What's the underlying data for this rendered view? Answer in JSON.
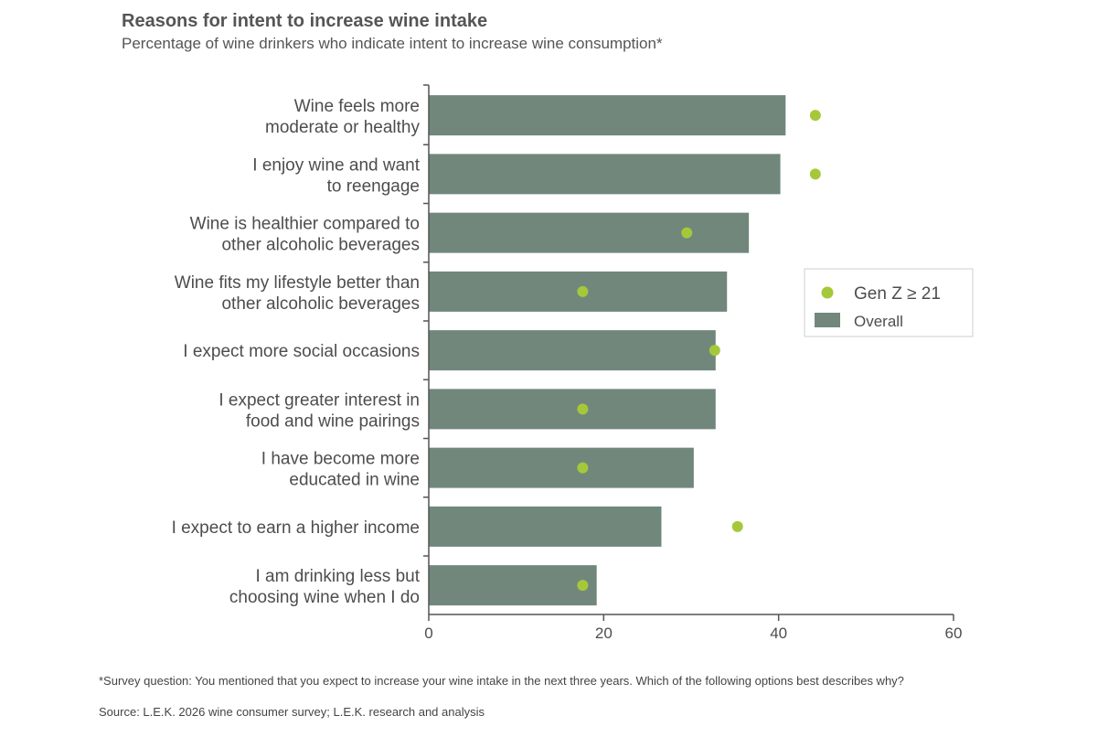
{
  "colors": {
    "bar": "#71877c",
    "dot": "#a5c83a",
    "axis": "#555555",
    "text": "#4d4d4d"
  },
  "chart_data": {
    "type": "bar",
    "orientation": "horizontal",
    "title": "Reasons for intent to increase wine intake",
    "subtitle": "Percentage of wine drinkers who indicate intent to increase wine consumption*",
    "categories": [
      [
        "Wine feels more",
        "moderate or healthy"
      ],
      [
        "I enjoy wine and want",
        "to reengage"
      ],
      [
        "Wine is healthier compared to",
        "other alcoholic beverages"
      ],
      [
        "Wine fits my lifestyle better than",
        "other alcoholic beverages"
      ],
      [
        "I expect more social occasions"
      ],
      [
        "I expect greater interest in",
        "food and wine pairings"
      ],
      [
        "I have become more",
        "educated in wine"
      ],
      [
        "I expect to earn a higher income"
      ],
      [
        "I am drinking less but",
        "choosing wine when I do"
      ]
    ],
    "series": [
      {
        "name": "Overall",
        "type": "bar",
        "values": [
          40.8,
          40.2,
          36.6,
          34.1,
          32.8,
          32.8,
          30.3,
          26.6,
          19.2
        ]
      },
      {
        "name": "Gen Z ≥ 21",
        "type": "dot",
        "values": [
          44.2,
          44.2,
          29.5,
          17.6,
          32.7,
          17.6,
          17.6,
          35.3,
          17.6
        ]
      }
    ],
    "xlim": [
      0,
      60
    ],
    "xticks": [
      0,
      20,
      40,
      60
    ],
    "legend": {
      "position": "right",
      "items": [
        {
          "label_main": "Gen Z ",
          "label_ge": "≥",
          "label_rest": " 21",
          "kind": "dot"
        },
        {
          "label": "Overall",
          "kind": "bar"
        }
      ]
    }
  },
  "footnote": "*Survey question: You mentioned that you expect to increase your wine intake in the next three years. Which of the following options best describes why?",
  "source": "Source: L.E.K. 2026 wine consumer survey; L.E.K. research and analysis"
}
